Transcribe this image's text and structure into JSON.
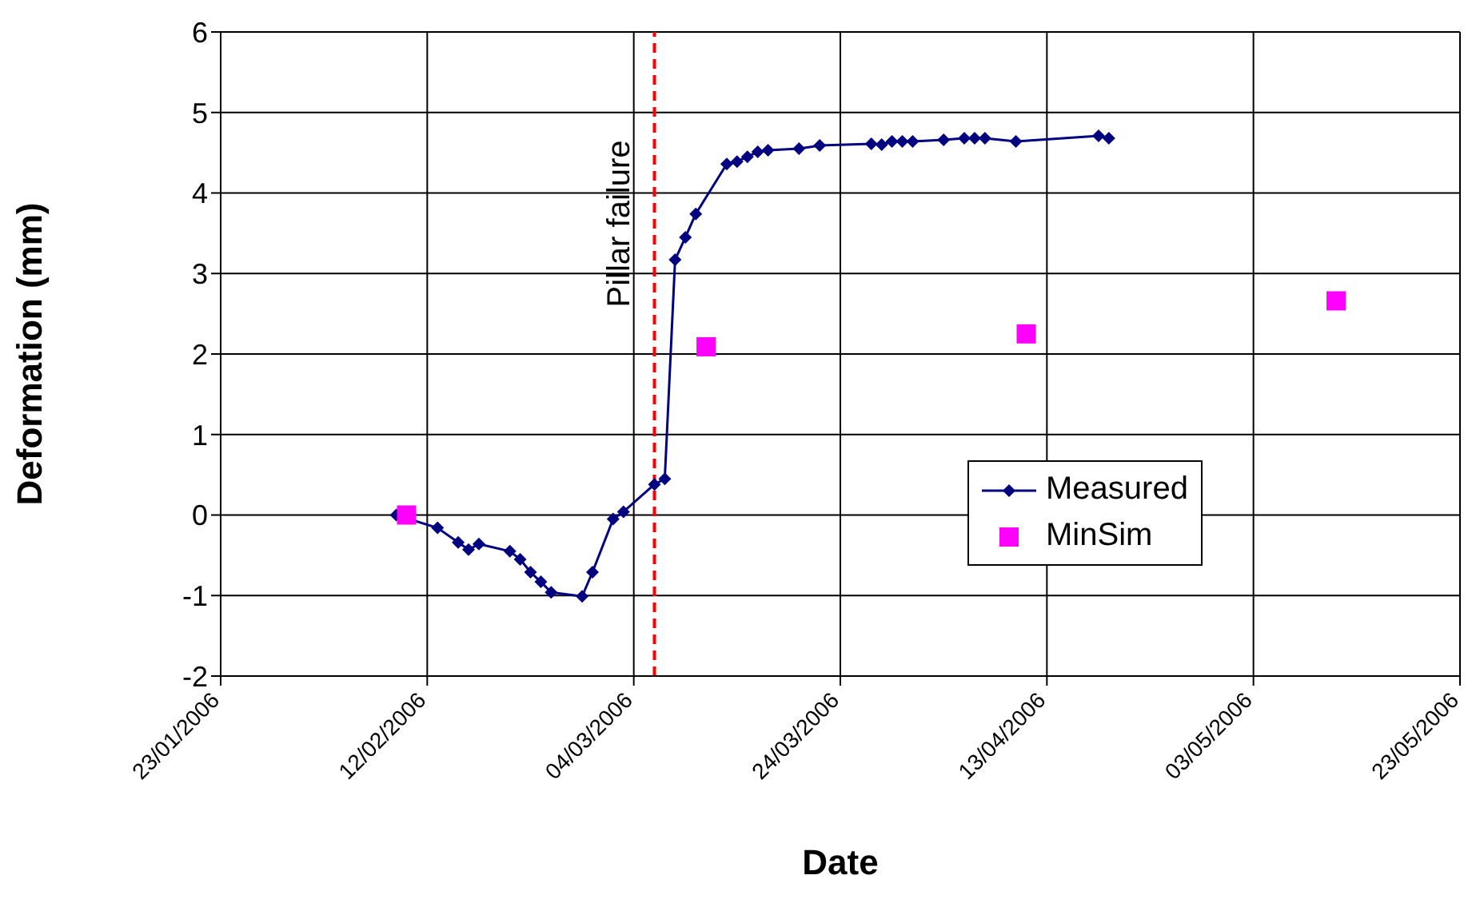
{
  "chart_data": {
    "type": "line",
    "xlabel": "Date",
    "ylabel": "Deformation (mm)",
    "xlim": [
      "2006-01-23",
      "2006-05-23"
    ],
    "xticks": [
      {
        "value": "2006-01-23",
        "label": "23/01/2006"
      },
      {
        "value": "2006-02-12",
        "label": "12/02/2006"
      },
      {
        "value": "2006-03-04",
        "label": "04/03/2006"
      },
      {
        "value": "2006-03-24",
        "label": "24/03/2006"
      },
      {
        "value": "2006-04-13",
        "label": "13/04/2006"
      },
      {
        "value": "2006-05-03",
        "label": "03/05/2006"
      },
      {
        "value": "2006-05-23",
        "label": "23/05/2006"
      }
    ],
    "ylim": [
      -2,
      6
    ],
    "yticks": [
      -2,
      -1,
      0,
      1,
      2,
      3,
      4,
      5,
      6
    ],
    "grid": true,
    "legend": "right",
    "ref_lines": [
      {
        "axis": "x",
        "value": "2006-03-06",
        "label": "Pillar failure",
        "color": "#ff0000",
        "line_style": "dashed"
      }
    ],
    "series": [
      {
        "name": "Measured",
        "type": "line",
        "color": "#000080",
        "marker": "diamond",
        "line_style": "solid",
        "x": [
          "2006-02-09",
          "2006-02-13",
          "2006-02-15",
          "2006-02-16",
          "2006-02-17",
          "2006-02-20",
          "2006-02-21",
          "2006-02-22",
          "2006-02-23",
          "2006-02-24",
          "2006-02-27",
          "2006-02-28",
          "2006-03-02",
          "2006-03-03",
          "2006-03-06",
          "2006-03-07",
          "2006-03-08",
          "2006-03-09",
          "2006-03-10",
          "2006-03-13",
          "2006-03-14",
          "2006-03-15",
          "2006-03-16",
          "2006-03-17",
          "2006-03-20",
          "2006-03-22",
          "2006-03-27",
          "2006-03-28",
          "2006-03-29",
          "2006-03-30",
          "2006-03-31",
          "2006-04-03",
          "2006-04-05",
          "2006-04-06",
          "2006-04-07",
          "2006-04-10",
          "2006-04-18",
          "2006-04-19"
        ],
        "values": [
          0,
          -0.16,
          -0.34,
          -0.43,
          -0.36,
          -0.45,
          -0.55,
          -0.71,
          -0.83,
          -0.96,
          -1.01,
          -0.71,
          -0.05,
          0.04,
          0.38,
          0.45,
          3.17,
          3.45,
          3.74,
          4.36,
          4.39,
          4.45,
          4.51,
          4.53,
          4.55,
          4.59,
          4.61,
          4.6,
          4.64,
          4.64,
          4.64,
          4.66,
          4.68,
          4.68,
          4.68,
          4.64,
          4.71,
          4.68
        ]
      },
      {
        "name": "MinSim",
        "type": "scatter",
        "color": "#ff00ff",
        "marker": "square",
        "x": [
          "2006-02-10",
          "2006-03-11",
          "2006-04-11",
          "2006-05-11"
        ],
        "values": [
          0,
          2.09,
          2.25,
          2.66
        ]
      }
    ]
  }
}
